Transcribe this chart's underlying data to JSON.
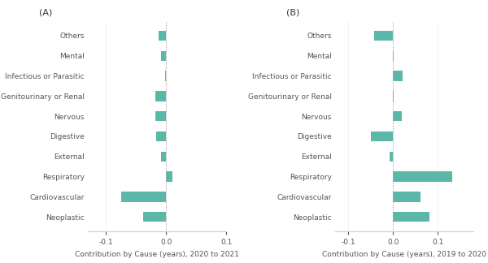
{
  "categories": [
    "Neoplastic",
    "Cardiovascular",
    "Respiratory",
    "External",
    "Digestive",
    "Nervous",
    "Genitourinary or Renal",
    "Infectious or Parasitic",
    "Mental",
    "Others"
  ],
  "values_A": [
    -0.038,
    -0.075,
    0.01,
    -0.008,
    -0.016,
    -0.018,
    -0.018,
    -0.001,
    -0.008,
    -0.013
  ],
  "values_B": [
    0.082,
    0.062,
    0.132,
    -0.008,
    -0.05,
    0.02,
    0.002,
    0.022,
    0.001,
    -0.042
  ],
  "bar_color": "#5BB8A8",
  "xlabel_A": "Contribution by Cause (years), 2020 to 2021",
  "xlabel_B": "Contribution by Cause (years), 2019 to 2020",
  "label_A": "(A)",
  "label_B": "(B)",
  "xlim_A": [
    -0.13,
    0.05
  ],
  "xlim_B": [
    -0.13,
    0.18
  ],
  "xticks_A": [
    -0.1,
    0.0,
    0.1
  ],
  "xticks_B": [
    -0.1,
    0.0,
    0.1
  ],
  "tick_fontsize": 6.5,
  "xlabel_fontsize": 6.5,
  "ylabel_fontsize": 6.5,
  "panel_label_fontsize": 8,
  "bar_height": 0.5,
  "vline_color": "#aaaaaa",
  "spine_color": "#cccccc",
  "text_color": "#555555"
}
